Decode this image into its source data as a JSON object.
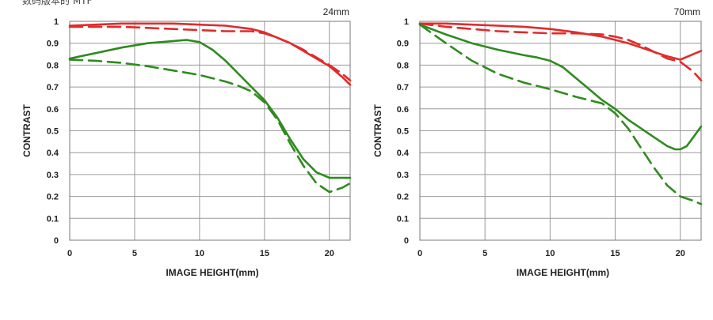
{
  "header": {
    "caption": "数码版本的 MTF"
  },
  "chart_data": [
    {
      "type": "line",
      "title": "24mm",
      "xlabel": "IMAGE HEIGHT(mm)",
      "ylabel": "CONTRAST",
      "xlim": [
        0,
        21.6
      ],
      "ylim": [
        0,
        1
      ],
      "xticks": [
        0,
        5,
        10,
        15,
        20
      ],
      "yticks": [
        0,
        0.1,
        0.2,
        0.3,
        0.4,
        0.5,
        0.6,
        0.7,
        0.8,
        0.9,
        1
      ],
      "series": [
        {
          "name": "red-solid",
          "color": "#e02b2b",
          "dash": false,
          "x": [
            0,
            2,
            4,
            6,
            8,
            10,
            12,
            14,
            15,
            16,
            17,
            18,
            19,
            20,
            21,
            21.6
          ],
          "y": [
            0.98,
            0.985,
            0.99,
            0.99,
            0.99,
            0.985,
            0.98,
            0.965,
            0.95,
            0.925,
            0.9,
            0.865,
            0.83,
            0.795,
            0.745,
            0.71
          ]
        },
        {
          "name": "red-dashed",
          "color": "#e02b2b",
          "dash": true,
          "x": [
            0,
            2,
            4,
            6,
            8,
            10,
            12,
            14,
            15,
            16,
            17,
            18,
            19,
            20,
            21,
            21.6
          ],
          "y": [
            0.975,
            0.975,
            0.975,
            0.97,
            0.965,
            0.96,
            0.955,
            0.955,
            0.945,
            0.925,
            0.9,
            0.87,
            0.835,
            0.8,
            0.76,
            0.73
          ]
        },
        {
          "name": "green-solid",
          "color": "#2e8b1e",
          "dash": false,
          "x": [
            0,
            2,
            4,
            6,
            8,
            9,
            10,
            11,
            12,
            13,
            14,
            15,
            16,
            17,
            18,
            19,
            20,
            21,
            21.6
          ],
          "y": [
            0.83,
            0.855,
            0.88,
            0.9,
            0.91,
            0.915,
            0.905,
            0.87,
            0.82,
            0.76,
            0.7,
            0.64,
            0.56,
            0.46,
            0.37,
            0.31,
            0.285,
            0.285,
            0.285
          ]
        },
        {
          "name": "green-dashed",
          "color": "#2e8b1e",
          "dash": true,
          "x": [
            0,
            2,
            4,
            6,
            8,
            10,
            12,
            13,
            14,
            15,
            16,
            17,
            18,
            19,
            20,
            21,
            21.6
          ],
          "y": [
            0.825,
            0.82,
            0.81,
            0.795,
            0.775,
            0.755,
            0.725,
            0.705,
            0.68,
            0.63,
            0.55,
            0.44,
            0.34,
            0.26,
            0.22,
            0.24,
            0.26
          ]
        }
      ]
    },
    {
      "type": "line",
      "title": "70mm",
      "xlabel": "IMAGE HEIGHT(mm)",
      "ylabel": "CONTRAST",
      "xlim": [
        0,
        21.6
      ],
      "ylim": [
        0,
        1
      ],
      "xticks": [
        0,
        5,
        10,
        15,
        20
      ],
      "yticks": [
        0,
        0.1,
        0.2,
        0.3,
        0.4,
        0.5,
        0.6,
        0.7,
        0.8,
        0.9,
        1
      ],
      "series": [
        {
          "name": "red-solid",
          "color": "#e02b2b",
          "dash": false,
          "x": [
            0,
            2,
            4,
            6,
            8,
            10,
            12,
            14,
            15,
            16,
            17,
            18,
            19,
            20,
            21,
            21.6
          ],
          "y": [
            0.99,
            0.99,
            0.985,
            0.98,
            0.975,
            0.965,
            0.95,
            0.93,
            0.915,
            0.9,
            0.88,
            0.86,
            0.84,
            0.825,
            0.85,
            0.865
          ]
        },
        {
          "name": "red-dashed",
          "color": "#e02b2b",
          "dash": true,
          "x": [
            0,
            2,
            4,
            6,
            8,
            10,
            12,
            14,
            15,
            16,
            17,
            18,
            19,
            20,
            21,
            21.6
          ],
          "y": [
            0.99,
            0.975,
            0.965,
            0.955,
            0.95,
            0.945,
            0.945,
            0.94,
            0.93,
            0.915,
            0.89,
            0.86,
            0.83,
            0.815,
            0.77,
            0.73
          ]
        },
        {
          "name": "green-solid",
          "color": "#2e8b1e",
          "dash": false,
          "x": [
            0,
            2,
            4,
            6,
            8,
            9,
            10,
            11,
            12,
            13,
            14,
            15,
            16,
            17,
            18,
            19,
            19.6,
            20,
            20.5,
            21,
            21.6
          ],
          "y": [
            0.985,
            0.94,
            0.9,
            0.87,
            0.845,
            0.835,
            0.82,
            0.79,
            0.74,
            0.69,
            0.64,
            0.6,
            0.55,
            0.51,
            0.47,
            0.43,
            0.415,
            0.415,
            0.43,
            0.47,
            0.52
          ]
        },
        {
          "name": "green-dashed",
          "color": "#2e8b1e",
          "dash": true,
          "x": [
            0,
            2,
            4,
            6,
            8,
            10,
            12,
            14,
            15,
            16,
            17,
            18,
            19,
            20,
            21,
            21.6
          ],
          "y": [
            0.985,
            0.9,
            0.82,
            0.76,
            0.72,
            0.69,
            0.655,
            0.625,
            0.58,
            0.51,
            0.42,
            0.33,
            0.25,
            0.2,
            0.18,
            0.165
          ]
        }
      ]
    }
  ]
}
